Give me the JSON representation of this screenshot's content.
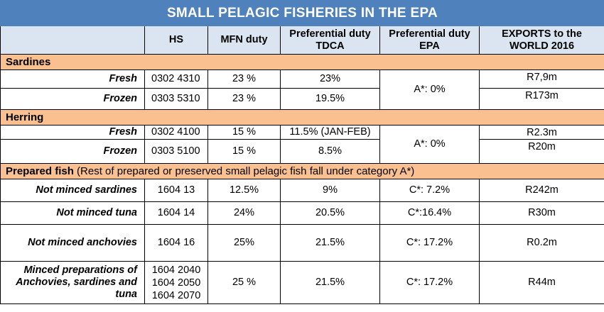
{
  "title": "SMALL PELAGIC FISHERIES IN THE EPA",
  "headers": {
    "hs": "HS",
    "mfn": "MFN duty",
    "tdca": "Preferential duty TDCA",
    "epa": "Preferential duty EPA",
    "exports": "EXPORTS to the WORLD 2016"
  },
  "sections": {
    "sardines": {
      "name": "Sardines",
      "rows": [
        {
          "label": "Fresh",
          "hs": "0302 4310",
          "mfn": "23 %",
          "tdca": "23%",
          "exports": "R7,9m"
        },
        {
          "label": "Frozen",
          "hs": "0303 5310",
          "mfn": "23 %",
          "tdca": "19.5%",
          "exports": "R173m"
        }
      ],
      "epa": "A*: 0%"
    },
    "herring": {
      "name": "Herring",
      "rows": [
        {
          "label": "Fresh",
          "hs": "0302 4100",
          "mfn": "15 %",
          "tdca": "11.5% (JAN-FEB)",
          "exports": "R2.3m"
        },
        {
          "label": "Frozen",
          "hs": "0303 5100",
          "mfn": "15 %",
          "tdca": "8.5%",
          "exports": "R20m"
        }
      ],
      "epa": "A*: 0%"
    },
    "prepared": {
      "name": "Prepared fish",
      "note": "(Rest of prepared or preserved small pelagic fish fall under category A*)",
      "rows": [
        {
          "label": "Not minced sardines",
          "hs": "1604 13",
          "mfn": "12.5%",
          "tdca": "9%",
          "epa": "C*: 7.2%",
          "exports": "R242m"
        },
        {
          "label": "Not minced tuna",
          "hs": "1604 14",
          "mfn": "24%",
          "tdca": "20.5%",
          "epa": "C*:16.4%",
          "exports": "R30m"
        },
        {
          "label": "Not minced anchovies",
          "hs": "1604 16",
          "mfn": "25%",
          "tdca": "21.5%",
          "epa": "C*: 17.2%",
          "exports": "R0.2m"
        }
      ],
      "minced": {
        "label_lines": [
          "Minced preparations of",
          "Anchovies, sardines and",
          "tuna"
        ],
        "hs_lines": [
          "1604 2040",
          "1604 2050",
          "1604 2070"
        ],
        "mfn": "25 %",
        "tdca": "21.5%",
        "epa": "C*: 17.2%",
        "exports": "R44m"
      }
    }
  },
  "colors": {
    "title_bg": "#4f81bd",
    "header_bg": "#dbe5f1",
    "section_bg": "#fac090"
  }
}
